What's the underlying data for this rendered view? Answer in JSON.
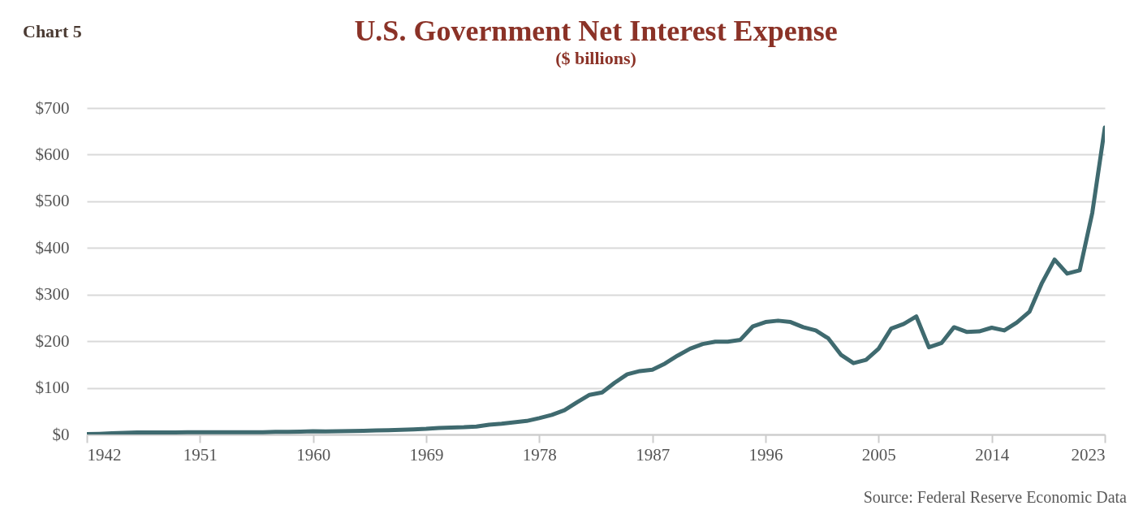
{
  "chart_data": {
    "type": "line",
    "title": "U.S. Government Net Interest Expense",
    "subtitle": "($ billions)",
    "annotations": [
      "Chart 5",
      "Source: Federal Reserve Economic Data"
    ],
    "x": [
      1942,
      1943,
      1944,
      1945,
      1946,
      1947,
      1948,
      1949,
      1950,
      1951,
      1952,
      1953,
      1954,
      1955,
      1956,
      1957,
      1958,
      1959,
      1960,
      1961,
      1962,
      1963,
      1964,
      1965,
      1966,
      1967,
      1968,
      1969,
      1970,
      1971,
      1972,
      1973,
      1974,
      1975,
      1976,
      1977,
      1978,
      1979,
      1980,
      1981,
      1982,
      1983,
      1984,
      1985,
      1986,
      1987,
      1988,
      1989,
      1990,
      1991,
      1992,
      1993,
      1994,
      1995,
      1996,
      1997,
      1998,
      1999,
      2000,
      2001,
      2002,
      2003,
      2004,
      2005,
      2006,
      2007,
      2008,
      2009,
      2010,
      2011,
      2012,
      2013,
      2014,
      2015,
      2016,
      2017,
      2018,
      2019,
      2020,
      2021,
      2022,
      2023
    ],
    "series": [
      {
        "color": "#3f6a6f",
        "values": [
          1,
          1.5,
          2.5,
          3.5,
          4.5,
          4.5,
          4.5,
          4.5,
          5,
          5,
          5,
          5,
          5,
          5,
          5,
          5.5,
          5.5,
          6,
          7,
          6.5,
          7,
          7.5,
          8,
          8.5,
          9,
          10,
          11,
          12,
          14,
          15,
          15.5,
          17,
          21,
          23,
          26,
          29,
          35,
          42,
          52,
          69,
          85,
          90,
          111,
          129,
          136,
          139,
          152,
          169,
          184,
          194,
          199,
          199,
          203,
          232,
          241,
          244,
          241,
          230,
          223,
          206,
          171,
          153,
          160,
          184,
          227,
          237,
          253,
          187,
          196,
          230,
          220,
          221,
          229,
          223,
          240,
          263,
          325,
          375,
          345,
          352,
          475,
          658
        ]
      }
    ],
    "xlim": [
      1942,
      2023
    ],
    "xticks": [
      1942,
      1951,
      1960,
      1969,
      1978,
      1987,
      1996,
      2005,
      2014,
      2023
    ],
    "ylim": [
      0,
      700
    ],
    "yticks": [
      {
        "value": 0,
        "label": "$0"
      },
      {
        "value": 100,
        "label": "$100"
      },
      {
        "value": 200,
        "label": "$200"
      },
      {
        "value": 300,
        "label": "$300"
      },
      {
        "value": 400,
        "label": "$400"
      },
      {
        "value": 500,
        "label": "$500"
      },
      {
        "value": 600,
        "label": "$600"
      },
      {
        "value": 700,
        "label": "$700"
      }
    ],
    "grid": "y",
    "marker": "none",
    "line_style": "solid"
  }
}
